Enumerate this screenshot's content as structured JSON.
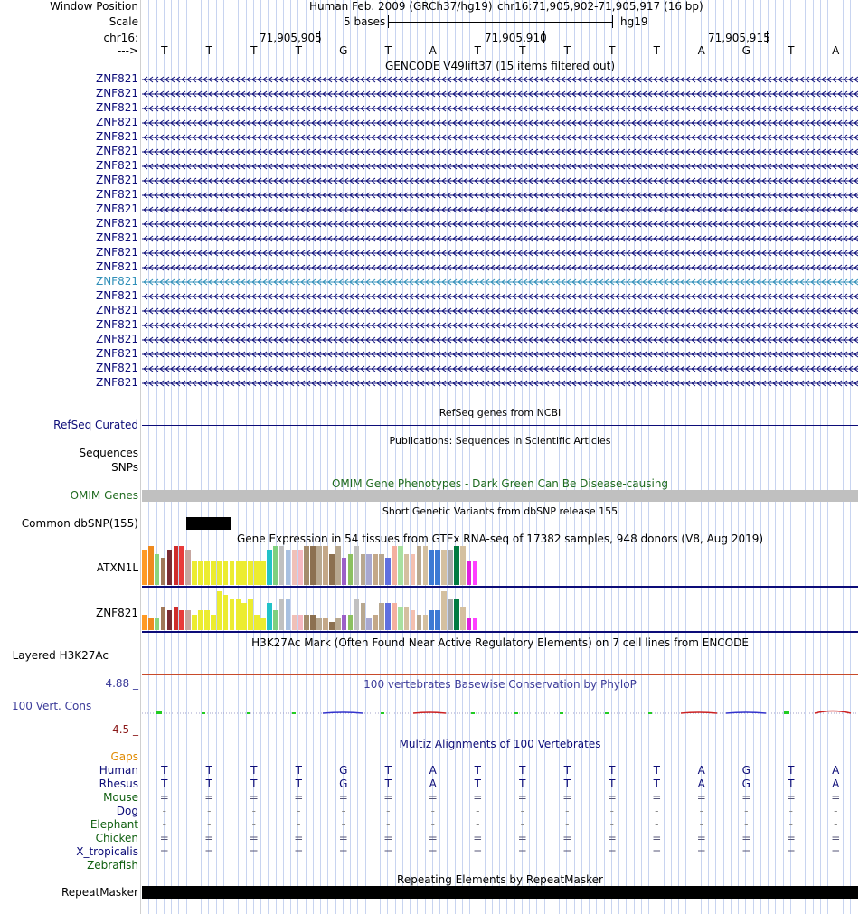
{
  "header": {
    "window_position_label": "Window Position",
    "scale_label": "Scale",
    "chrom_label": "chr16:",
    "strand_label": "--->",
    "assembly": "Human Feb. 2009 (GRCh37/hg19)",
    "position": "chr16:71,905,902-71,905,917 (16 bp)",
    "scale_text": "5 bases",
    "db": "hg19",
    "ticks": [
      "71,905,905",
      "71,905,910",
      "71,905,915"
    ],
    "bases": [
      "T",
      "T",
      "T",
      "T",
      "G",
      "T",
      "A",
      "T",
      "T",
      "T",
      "T",
      "T",
      "A",
      "G",
      "T",
      "A"
    ]
  },
  "gencode": {
    "title": "GENCODE V49lift37 (15 items filtered out)",
    "items": [
      {
        "name": "ZNF821"
      },
      {
        "name": "ZNF821"
      },
      {
        "name": "ZNF821"
      },
      {
        "name": "ZNF821"
      },
      {
        "name": "ZNF821"
      },
      {
        "name": "ZNF821"
      },
      {
        "name": "ZNF821"
      },
      {
        "name": "ZNF821"
      },
      {
        "name": "ZNF821"
      },
      {
        "name": "ZNF821"
      },
      {
        "name": "ZNF821"
      },
      {
        "name": "ZNF821"
      },
      {
        "name": "ZNF821"
      },
      {
        "name": "ZNF821"
      },
      {
        "name": "ZNF821"
      },
      {
        "name": "ZNF821"
      },
      {
        "name": "ZNF821"
      },
      {
        "name": "ZNF821"
      },
      {
        "name": "ZNF821"
      },
      {
        "name": "ZNF821"
      },
      {
        "name": "ZNF821"
      },
      {
        "name": "ZNF821"
      }
    ],
    "highlight_index": 14,
    "colors": {
      "gene": "#0c0c78",
      "highlight": "#2f8fb8"
    }
  },
  "refseq": {
    "label": "RefSeq Curated",
    "title": "RefSeq genes from NCBI"
  },
  "publications": {
    "title": "Publications: Sequences in Scientific Articles",
    "label_sequences": "Sequences",
    "label_snps": "SNPs"
  },
  "omim": {
    "title": "OMIM Gene Phenotypes - Dark Green Can Be Disease-causing",
    "label": "OMIM Genes",
    "color": "#1f6b1f"
  },
  "dbsnp": {
    "title": "Short Genetic Variants from dbSNP release 155",
    "label": "Common dbSNP(155)"
  },
  "gtex": {
    "title": "Gene Expression in 54 tissues from GTEx RNA-seq of 17382 samples, 948 donors (V8, Aug 2019)",
    "genes": [
      {
        "name": "ATXN1L",
        "values": [
          9,
          10,
          8,
          7,
          9,
          10,
          10,
          9,
          6,
          6,
          6,
          6,
          6,
          6,
          6,
          6,
          6,
          6,
          6,
          6,
          9,
          10,
          10,
          9,
          9,
          9,
          10,
          10,
          10,
          10,
          8,
          10,
          7,
          8,
          10,
          8,
          8,
          8,
          8,
          7,
          10,
          10,
          8,
          8,
          10,
          10,
          9,
          9,
          9,
          9,
          10,
          10,
          6,
          6
        ]
      },
      {
        "name": "ZNF821",
        "values": [
          4,
          3,
          3,
          6,
          5,
          6,
          5,
          5,
          4,
          5,
          5,
          4,
          10,
          9,
          8,
          8,
          7,
          8,
          4,
          3,
          7,
          5,
          8,
          8,
          4,
          4,
          4,
          4,
          3,
          3,
          2,
          3,
          4,
          4,
          8,
          7,
          3,
          4,
          7,
          7,
          7,
          6,
          6,
          5,
          4,
          4,
          5,
          5,
          10,
          8,
          8,
          6,
          3,
          3
        ]
      }
    ],
    "colors": [
      "#ff9a24",
      "#ef8a1e",
      "#8bd47e",
      "#a0785a",
      "#7b2c34",
      "#d02c2c",
      "#e83a3a",
      "#c6a6a0",
      "#ecec30",
      "#ecec30",
      "#ecec30",
      "#ecec30",
      "#ecec30",
      "#ecec30",
      "#ecec30",
      "#ecec30",
      "#ecec30",
      "#ecec30",
      "#ecec30",
      "#ecec30",
      "#22c2c8",
      "#7ed07e",
      "#c0c0c0",
      "#a8c0e0",
      "#f0c0b8",
      "#f6b8c0",
      "#a48c6c",
      "#8c7050",
      "#b8a890",
      "#c4a888",
      "#8c7050",
      "#b8a890",
      "#9c60c8",
      "#8cc060",
      "#c0c0c0",
      "#b8a890",
      "#a8a8d0",
      "#c4a888",
      "#b8a890",
      "#6070e0",
      "#f4b0a0",
      "#a8e0a0",
      "#d4c0a0",
      "#f4c0b0",
      "#b8a890",
      "#d4c0a0",
      "#3c7ad4",
      "#3c7ad4",
      "#d4c0a0",
      "#a8a8a8",
      "#007a40",
      "#d4c0a0",
      "#e020e0",
      "#ff40ff"
    ]
  },
  "h3k27ac": {
    "title": "H3K27Ac Mark (Often Found Near Active Regulatory Elements) on 7 cell lines from ENCODE",
    "label": "Layered H3K27Ac"
  },
  "phylop": {
    "title": "100 vertebrates Basewise Conservation by PhyloP",
    "label": "100 Vert. Cons",
    "max": "4.88 _",
    "min": "-4.5 _",
    "title_color": "#3c3c9a"
  },
  "multiz": {
    "title": "Multiz Alignments of 100 Vertebrates",
    "gaps_label": "Gaps",
    "species": [
      {
        "name": "Human",
        "row": "TTTTGTATTTTTAGTA",
        "color": "#0c0c78"
      },
      {
        "name": "Rhesus",
        "row": "TTTTGTATTTTTAGTA",
        "color": "#0c0c78"
      },
      {
        "name": "Mouse",
        "row": "================",
        "color": "#0f5f0f"
      },
      {
        "name": "Dog",
        "row": "----------------",
        "color": "#0c0c78"
      },
      {
        "name": "Elephant",
        "row": "----------------",
        "color": "#0f5f0f"
      },
      {
        "name": "Chicken",
        "row": "================",
        "color": "#0f5f0f"
      },
      {
        "name": "X_tropicalis",
        "row": "================",
        "color": "#0c0c78"
      },
      {
        "name": "Zebrafish",
        "row": "",
        "color": "#0f5f0f"
      }
    ]
  },
  "repeatmasker": {
    "title": "Repeating Elements by RepeatMasker",
    "label": "RepeatMasker"
  }
}
